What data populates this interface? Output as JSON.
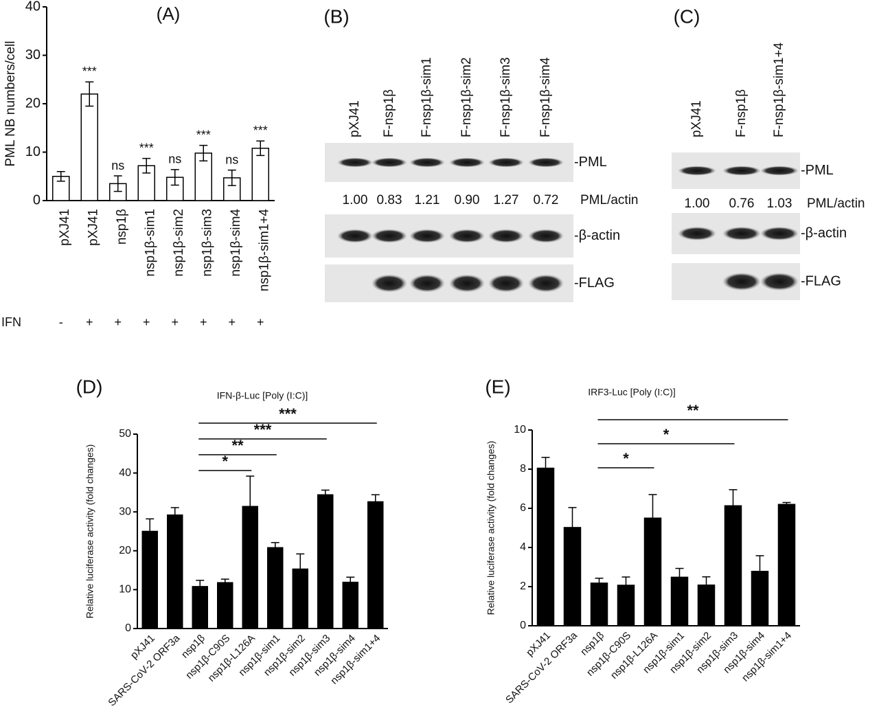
{
  "chart_data": [
    {
      "type": "bar",
      "panel": "(A)",
      "ylabel": "PML NB numbers/cell",
      "categories": [
        "pXJ41",
        "pXJ41",
        "nsp1β",
        "nsp1β-sim1",
        "nsp1β-sim2",
        "nsp1β-sim3",
        "nsp1β-sim4",
        "nsp1β-sim1+4"
      ],
      "values": [
        5,
        22,
        3.5,
        7.2,
        4.8,
        9.8,
        4.7,
        10.8
      ],
      "errors": [
        1,
        2.5,
        1.6,
        1.5,
        1.6,
        1.6,
        1.6,
        1.5
      ],
      "significance": [
        null,
        "***",
        "ns",
        "***",
        "ns",
        "***",
        "ns",
        "***"
      ],
      "treatment_label": "IFN",
      "treatment": [
        "-",
        "+",
        "+",
        "+",
        "+",
        "+",
        "+",
        "+"
      ],
      "color": "#ffffff",
      "ylim": [
        0,
        40
      ],
      "yticks": [
        0,
        10,
        20,
        30,
        40
      ]
    },
    {
      "type": "bar",
      "panel": "(D)",
      "title": "IFN-β-Luc [Poly (I:C)]",
      "ylabel": "Relative luciferase activity (fold changes)",
      "categories": [
        "pXJ41",
        "SARS-CoV-2 ORF3a",
        "nsp1β",
        "nsp1β-C90S",
        "nsp1β-L126A",
        "nsp1β-sim1",
        "nsp1β-sim2",
        "nsp1β-sim3",
        "nsp1β-sim4",
        "nsp1β-sim1+4"
      ],
      "values": [
        25,
        29.2,
        10.8,
        11.8,
        31.4,
        20.8,
        15.3,
        34.4,
        11.9,
        32.6
      ],
      "errors": [
        3.2,
        1.9,
        1.6,
        0.9,
        7.8,
        1.3,
        3.9,
        1.2,
        1.3,
        1.8
      ],
      "comparisons": [
        {
          "from": "nsp1β",
          "to": "nsp1β-L126A",
          "label": "*"
        },
        {
          "from": "nsp1β",
          "to": "nsp1β-sim1",
          "label": "**"
        },
        {
          "from": "nsp1β",
          "to": "nsp1β-sim3",
          "label": "***"
        },
        {
          "from": "nsp1β",
          "to": "nsp1β-sim1+4",
          "label": "***"
        }
      ],
      "color": "#000000",
      "ylim": [
        0,
        50
      ],
      "yticks": [
        0,
        10,
        20,
        30,
        40,
        50
      ]
    },
    {
      "type": "bar",
      "panel": "(E)",
      "title": "IRF3-Luc [Poly (I:C)]",
      "ylabel": "Relative luciferase activity (fold changes)",
      "categories": [
        "pXJ41",
        "SARS-CoV-2 ORF3a",
        "nsp1β",
        "nsp1β-C90S",
        "nsp1β-L126A",
        "nsp1β-sim1",
        "nsp1β-sim2",
        "nsp1β-sim3",
        "nsp1β-sim4",
        "nsp1β-sim1+4"
      ],
      "values": [
        8.05,
        5.02,
        2.18,
        2.07,
        5.5,
        2.48,
        2.08,
        6.13,
        2.78,
        6.2
      ],
      "errors": [
        0.55,
        1.02,
        0.25,
        0.42,
        1.2,
        0.45,
        0.42,
        0.82,
        0.8,
        0.1
      ],
      "comparisons": [
        {
          "from": "nsp1β",
          "to": "nsp1β-L126A",
          "label": "*"
        },
        {
          "from": "nsp1β",
          "to": "nsp1β-sim3",
          "label": "*"
        },
        {
          "from": "nsp1β",
          "to": "nsp1β-sim1+4",
          "label": "**"
        }
      ],
      "color": "#000000",
      "ylim": [
        0,
        10
      ],
      "yticks": [
        0,
        2,
        4,
        6,
        8,
        10
      ]
    }
  ],
  "blots": [
    {
      "panel": "(B)",
      "lanes": [
        "pXJ41",
        "F-nsp1β",
        "F-nsp1β-sim1",
        "F-nsp1β-sim2",
        "F-nsp1β-sim3",
        "F-nsp1β-sim4"
      ],
      "ratios": [
        "1.00",
        "0.83",
        "1.21",
        "0.90",
        "1.27",
        "0.72"
      ],
      "ratio_label": "PML/actin",
      "bands": [
        "-PML",
        "-β-actin",
        "-FLAG"
      ]
    },
    {
      "panel": "(C)",
      "lanes": [
        "pXJ41",
        "F-nsp1β",
        "F-nsp1β-sim1+4"
      ],
      "ratios": [
        "1.00",
        "0.76",
        "1.03"
      ],
      "ratio_label": "PML/actin",
      "bands": [
        "-PML",
        "-β-actin",
        "-FLAG"
      ]
    }
  ]
}
